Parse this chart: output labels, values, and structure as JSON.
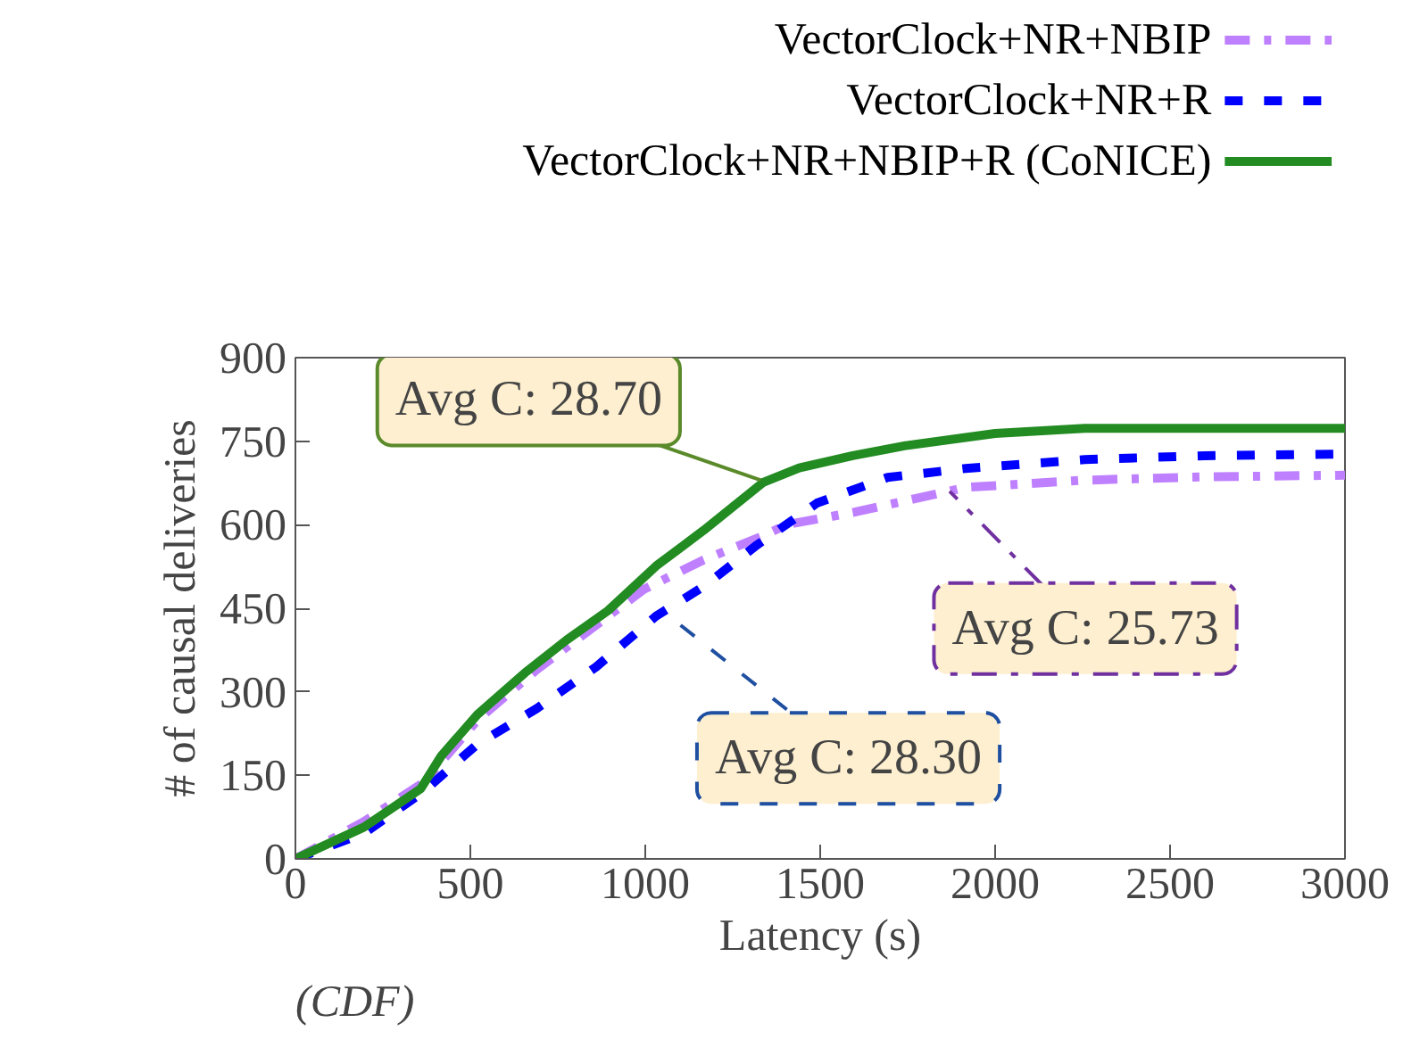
{
  "chart_data": {
    "type": "line",
    "xlabel": "Latency (s)",
    "ylabel": "# of causal deliveries",
    "xlim": [
      0,
      3000
    ],
    "xticks": [
      0,
      500,
      1000,
      1500,
      2000,
      2500,
      {
        "value": 3000,
        "label": "3000"
      }
    ],
    "ylim": [
      0,
      900
    ],
    "yticks": [
      0,
      150,
      300,
      450,
      600,
      750,
      900
    ],
    "grid": false,
    "legend": "top right",
    "marker": "none",
    "series": [
      {
        "name": "VectorClock+NR+NBIP",
        "color": "#bf80ff",
        "line_style": "dashdot",
        "x": [
          0,
          196,
          366,
          520,
          690,
          860,
          996,
          1167,
          1337,
          1403,
          1593,
          1915,
          2256,
          2600,
          3000
        ],
        "values": [
          0,
          67,
          137,
          249,
          340,
          420,
          484,
          537,
          580,
          600,
          622,
          667,
          680,
          686,
          689
        ]
      },
      {
        "name": "VectorClock+NR+R",
        "color": "#0000ff",
        "line_style": "dashed",
        "x": [
          0,
          196,
          366,
          520,
          690,
          860,
          1031,
          1167,
          1320,
          1491,
          1693,
          1915,
          2256,
          2600,
          3000
        ],
        "values": [
          0,
          46,
          121,
          206,
          270,
          345,
          436,
          489,
          564,
          639,
          685,
          701,
          717,
          724,
          727
        ]
      },
      {
        "name": "VectorClock+NR+NBIP+R (CoNICE)",
        "color": "#228b22",
        "line_style": "solid",
        "x": [
          0,
          196,
          358,
          417,
          520,
          656,
          775,
          894,
          1031,
          1167,
          1337,
          1440,
          1593,
          1744,
          2000,
          2256,
          3000
        ],
        "values": [
          0,
          57,
          126,
          185,
          259,
          334,
          393,
          446,
          526,
          590,
          676,
          702,
          724,
          742,
          764,
          773,
          773
        ]
      }
    ],
    "annotations": [
      {
        "text": "Avg C: 28.70",
        "x": 1330,
        "y": 680
      },
      {
        "text": "Avg C: 28.30",
        "x": 1060,
        "y": 440
      },
      {
        "text": "Avg C: 25.73",
        "x": 1870,
        "y": 660
      },
      "(CDF)"
    ]
  }
}
